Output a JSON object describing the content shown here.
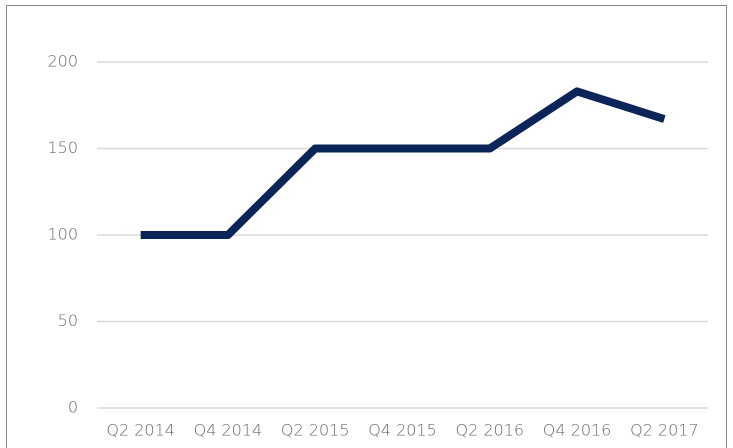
{
  "chart_data": {
    "type": "line",
    "categories": [
      "Q2 2014",
      "Q4 2014",
      "Q2 2015",
      "Q4 2015",
      "Q2 2016",
      "Q4 2016",
      "Q2 2017"
    ],
    "values": [
      100,
      100,
      150,
      150,
      150,
      183,
      167
    ],
    "color": "#0b2559",
    "ylim": [
      0,
      200
    ],
    "yticks": [
      0,
      50,
      100,
      150,
      200
    ],
    "grid": true
  }
}
